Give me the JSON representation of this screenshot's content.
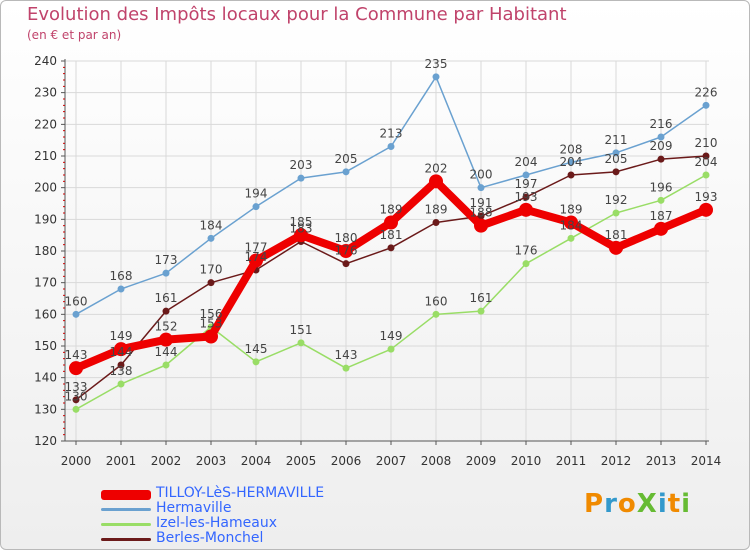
{
  "header": {
    "title": "Evolution des Impôts locaux pour la Commune par Habitant",
    "subtitle": "(en € et par an)"
  },
  "logo_text": "ProXiti",
  "colors": {
    "title": "#c0436b",
    "axis": "#555555",
    "grid": "#d9d9d9",
    "tick_red": "#cc0000"
  },
  "chart_data": {
    "type": "line",
    "title": "Evolution des Impôts locaux pour la Commune par Habitant",
    "subtitle": "(en € et par an)",
    "xlabel": "",
    "ylabel": "",
    "x": [
      "2000",
      "2001",
      "2002",
      "2003",
      "2004",
      "2005",
      "2006",
      "2007",
      "2008",
      "2009",
      "2010",
      "2011",
      "2012",
      "2013",
      "2014"
    ],
    "ylim": [
      120,
      240
    ],
    "yticks": [
      120,
      130,
      140,
      150,
      160,
      170,
      180,
      190,
      200,
      210,
      220,
      230,
      240
    ],
    "grid": true,
    "legend_position": "bottom-left",
    "series": [
      {
        "name": "TILLOY-LèS-HERMAVILLE",
        "color": "#ee0000",
        "values": [
          143,
          149,
          152,
          153,
          177,
          185,
          180,
          189,
          202,
          188,
          193,
          189,
          181,
          187,
          193
        ]
      },
      {
        "name": "Hermaville",
        "color": "#6aa1d0",
        "values": [
          160,
          168,
          173,
          184,
          194,
          203,
          205,
          213,
          235,
          200,
          204,
          208,
          211,
          216,
          226
        ]
      },
      {
        "name": "Izel-les-Hameaux",
        "color": "#99dd66",
        "values": [
          130,
          138,
          144,
          156,
          145,
          151,
          143,
          149,
          160,
          161,
          176,
          184,
          192,
          196,
          204
        ]
      },
      {
        "name": "Berles-Monchel",
        "color": "#6b1a1a",
        "values": [
          133,
          144,
          161,
          170,
          174,
          183,
          176,
          181,
          189,
          191,
          197,
          204,
          205,
          209,
          210
        ]
      }
    ]
  }
}
